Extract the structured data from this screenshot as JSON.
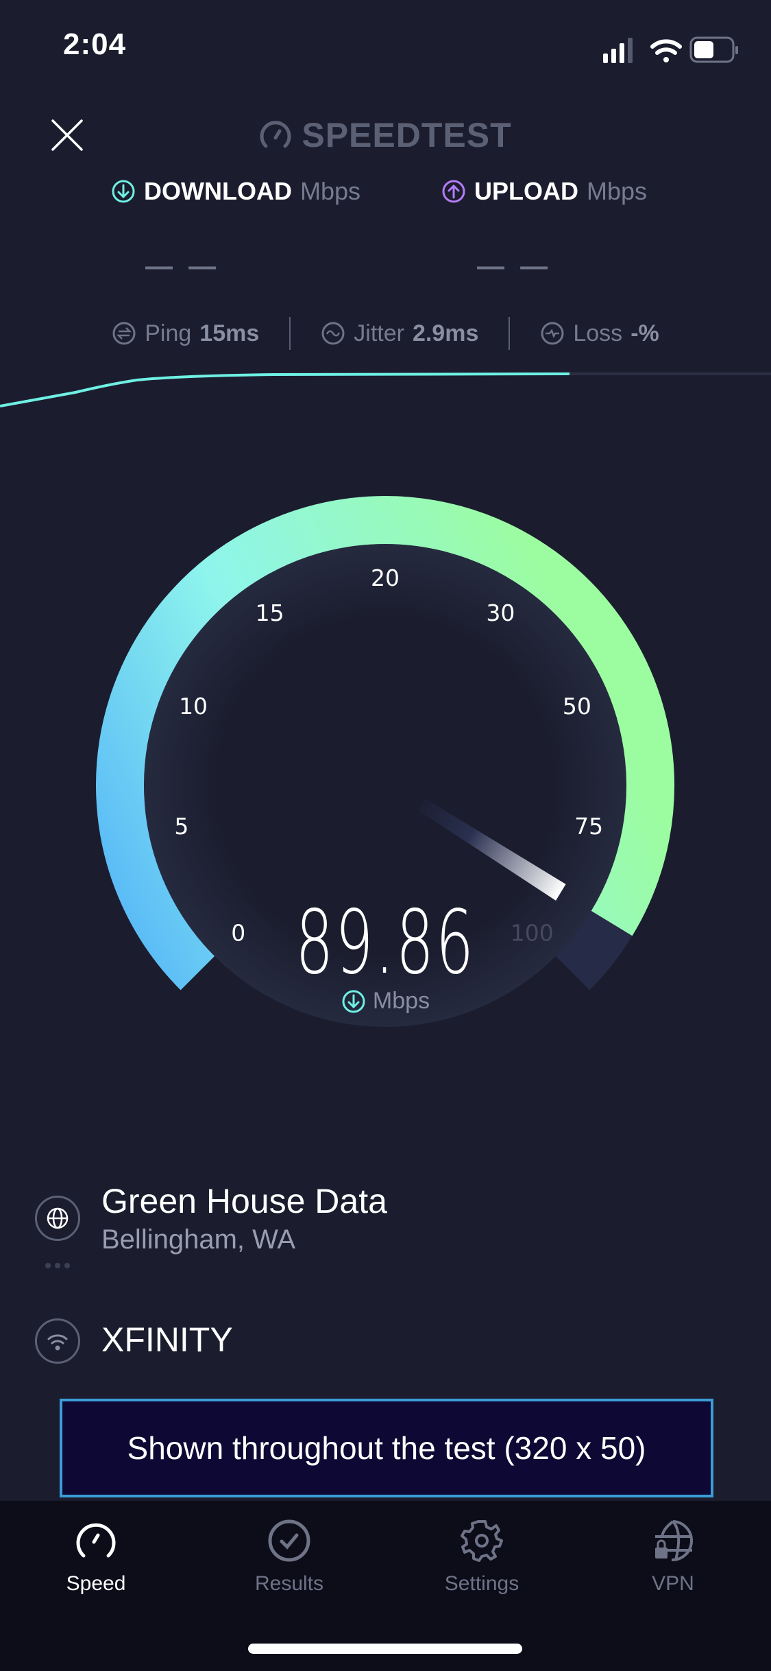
{
  "status_bar": {
    "time": "2:04",
    "icons": [
      "cellular-signal-icon",
      "wifi-icon",
      "battery-icon"
    ]
  },
  "header": {
    "close_icon": "close-icon",
    "logo_text": "SPEEDTEST"
  },
  "results": {
    "download": {
      "label": "DOWNLOAD",
      "unit": "Mbps",
      "value": "— —",
      "color": "#6ff0e4"
    },
    "upload": {
      "label": "UPLOAD",
      "unit": "Mbps",
      "value": "— —",
      "color": "#b57cf7"
    }
  },
  "metrics": {
    "ping": {
      "label": "Ping",
      "value": "15",
      "unit": "ms"
    },
    "jitter": {
      "label": "Jitter",
      "value": "2.9",
      "unit": "ms"
    },
    "loss": {
      "label": "Loss",
      "value": "-",
      "unit": "%"
    }
  },
  "gauge": {
    "scale_labels": [
      "0",
      "5",
      "10",
      "15",
      "20",
      "30",
      "50",
      "75",
      "100"
    ],
    "scale_values": [
      0,
      5,
      10,
      15,
      20,
      30,
      50,
      75,
      100
    ],
    "value": 89.86,
    "value_text": "89.86",
    "unit": "Mbps",
    "colors": {
      "start": "#54b4f8",
      "mid": "#8ff5ec",
      "end": "#9cfca0",
      "track": "#262b47"
    }
  },
  "server": {
    "name": "Green House Data",
    "location": "Bellingham, WA"
  },
  "isp": {
    "name": "XFINITY"
  },
  "ad": {
    "text": "Shown throughout the test (320 x 50)"
  },
  "tabs": [
    {
      "label": "Speed",
      "icon": "speedometer-icon",
      "active": true
    },
    {
      "label": "Results",
      "icon": "check-circle-icon",
      "active": false
    },
    {
      "label": "Settings",
      "icon": "gear-icon",
      "active": false
    },
    {
      "label": "VPN",
      "icon": "vpn-globe-lock-icon",
      "active": false
    }
  ]
}
